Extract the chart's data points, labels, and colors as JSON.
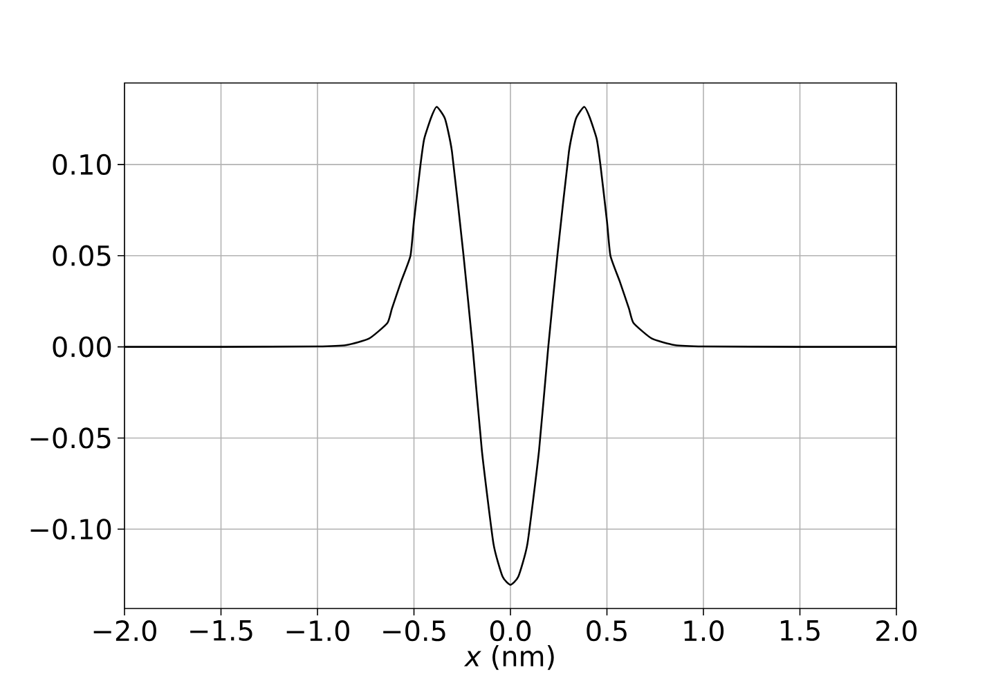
{
  "chart_data": {
    "type": "line",
    "xlabel": "*x* (nm)",
    "x": [
      -2,
      -1.5,
      -1.0,
      -0.85,
      -0.733,
      -0.638,
      -0.614,
      -0.566,
      -0.518,
      -0.5,
      -0.466,
      -0.447,
      -0.41,
      -0.382,
      -0.339,
      -0.303,
      -0.244,
      -0.196,
      -0.148,
      -0.088,
      -0.041,
      0,
      0.041,
      0.088,
      0.148,
      0.196,
      0.244,
      0.303,
      0.339,
      0.382,
      0.41,
      0.447,
      0.466,
      0.5,
      0.518,
      0.566,
      0.614,
      0.638,
      0.733,
      0.85,
      1.0,
      1.5,
      2
    ],
    "series": [
      {
        "color": "#000000",
        "values": [
          0,
          0,
          0.0002,
          0.001,
          0.0045,
          0.013,
          0.021,
          0.036,
          0.05,
          0.069,
          0.1,
          0.114,
          0.126,
          0.1316,
          0.125,
          0.107,
          0.051,
          0,
          -0.057,
          -0.108,
          -0.126,
          -0.1305,
          -0.126,
          -0.108,
          -0.057,
          0,
          0.051,
          0.107,
          0.125,
          0.1316,
          0.126,
          0.114,
          0.1,
          0.069,
          0.05,
          0.036,
          0.021,
          0.013,
          0.0045,
          0.001,
          0.0002,
          0,
          0
        ]
      }
    ],
    "xlim": [
      -2,
      2
    ],
    "ylim": [
      -0.1435,
      0.1447
    ],
    "xticks": [
      {
        "value": -2,
        "label": "−2.0"
      },
      {
        "value": -1.5,
        "label": "−1.5"
      },
      {
        "value": -1,
        "label": "−1.0"
      },
      {
        "value": -0.5,
        "label": "−0.5"
      },
      {
        "value": 0,
        "label": "0.0"
      },
      {
        "value": 0.5,
        "label": "0.5"
      },
      {
        "value": 1,
        "label": "1.0"
      },
      {
        "value": 1.5,
        "label": "1.5"
      },
      {
        "value": 2,
        "label": "2.0"
      }
    ],
    "yticks": [
      {
        "value": -0.1,
        "label": "−0.10"
      },
      {
        "value": -0.05,
        "label": "−0.05"
      },
      {
        "value": 0,
        "label": "0.00"
      },
      {
        "value": 0.05,
        "label": "0.05"
      },
      {
        "value": 0.1,
        "label": "0.10"
      }
    ],
    "grid": true,
    "marker": "none",
    "line_style": "solid"
  }
}
